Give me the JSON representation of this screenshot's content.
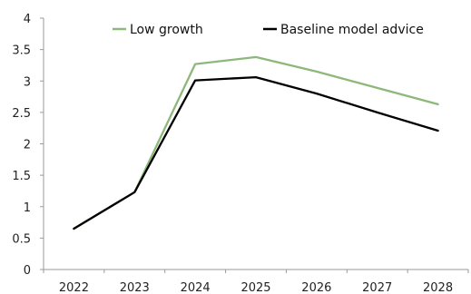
{
  "chart_data": {
    "type": "line",
    "title": "",
    "xlabel": "",
    "ylabel": "",
    "categories": [
      "2022",
      "2023",
      "2024",
      "2025",
      "2026",
      "2027",
      "2028"
    ],
    "ylim": [
      0,
      4
    ],
    "yticks": [
      0,
      0.5,
      1,
      1.5,
      2,
      2.5,
      3,
      3.5,
      4
    ],
    "ytick_labels": [
      "0",
      "0.5",
      "1",
      "1.5",
      "2",
      "2.5",
      "3",
      "3.5",
      "4"
    ],
    "grid": false,
    "legend_position": "top",
    "series": [
      {
        "name": "Low growth",
        "color": "#8DB87A",
        "values": [
          0.65,
          1.23,
          3.27,
          3.38,
          3.15,
          2.89,
          2.63
        ]
      },
      {
        "name": "Baseline model advice",
        "color": "#000000",
        "values": [
          0.65,
          1.23,
          3.01,
          3.06,
          2.8,
          2.5,
          2.21
        ]
      }
    ]
  }
}
